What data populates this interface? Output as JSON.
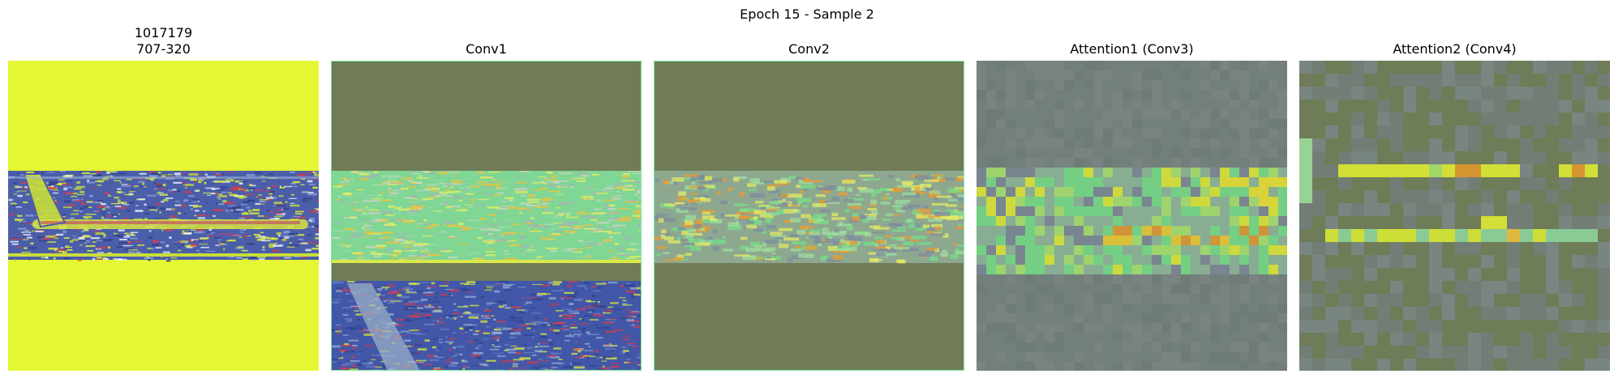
{
  "figure": {
    "title": "Epoch 15 - Sample 2"
  },
  "panels": [
    {
      "title_line1": "1017179",
      "title_line2": "707-320"
    },
    {
      "title": "Conv1"
    },
    {
      "title": "Conv2"
    },
    {
      "title": "Attention1 (Conv3)"
    },
    {
      "title": "Attention2 (Conv4)"
    }
  ],
  "colors": {
    "yellow_bg": "#e5f733",
    "olive": "#6f7c57",
    "slate": "#737f7a",
    "band_navy": "#3a4f9e",
    "band_green": "#74e387",
    "hot_yellow": "#f2f02a",
    "hot_orange": "#e79a2a",
    "red_speckle": "#d83a4a"
  }
}
